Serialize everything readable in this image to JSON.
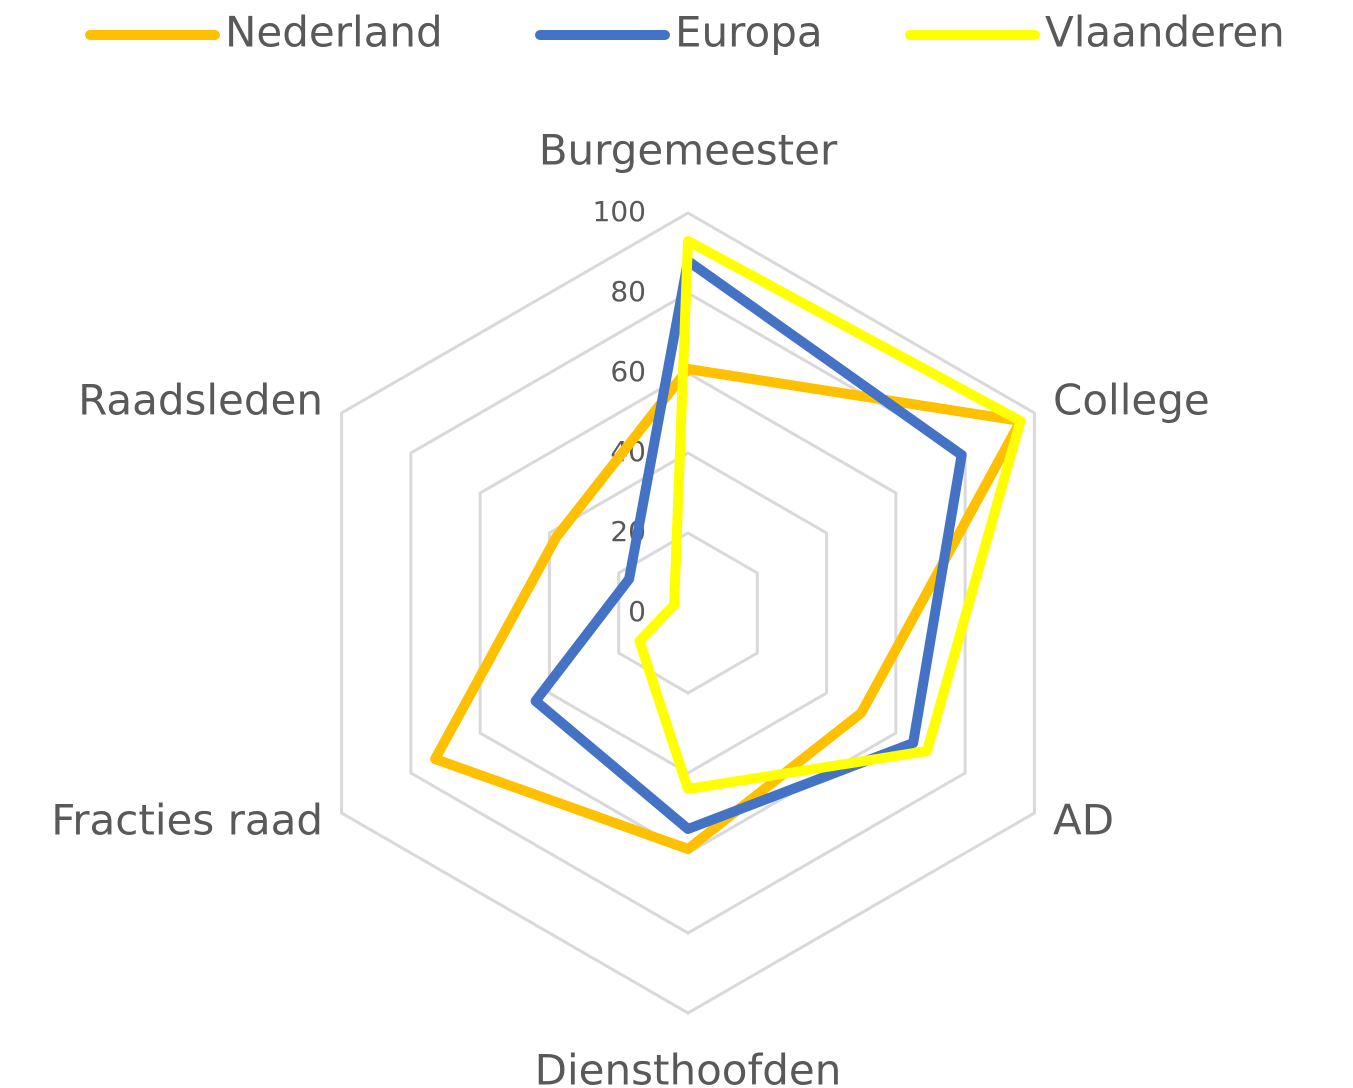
{
  "chart_data": {
    "type": "radar",
    "categories": [
      "Burgemeester",
      "College",
      "AD",
      "Diensthoofden",
      "Fracties raad",
      "Raadsleden"
    ],
    "series": [
      {
        "name": "Nederland",
        "color": "#ffc000",
        "values": [
          61,
          96,
          50,
          59,
          73,
          38
        ]
      },
      {
        "name": "Europa",
        "color": "#4472c4",
        "values": [
          88,
          79,
          65,
          54,
          44,
          17
        ]
      },
      {
        "name": "Vlaanderen",
        "color": "#ffff00",
        "values": [
          93,
          96,
          69,
          44,
          14,
          4
        ]
      }
    ],
    "ylim": [
      0,
      100
    ],
    "yticks": [
      0,
      20,
      40,
      60,
      80,
      100
    ],
    "grid": true,
    "legend": "top"
  }
}
